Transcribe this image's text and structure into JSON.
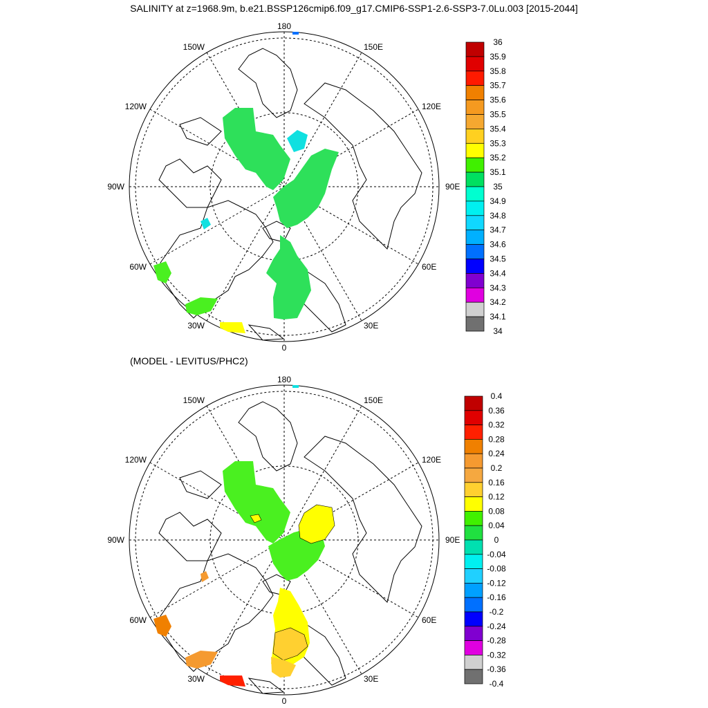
{
  "title": "SALINITY at z=1968.9m, b.e21.BSSP126cmip6.f09_g17.CMIP6-SSP1-2.6-SSP3-7.0Lu.003 [2015-2044]",
  "subtitle": "(MODEL - LEVITUS/PHC2)",
  "lon_labels": {
    "top": "180",
    "bottom": "0",
    "left": "90W",
    "right": "90E",
    "ul1": "150W",
    "ul2": "120W",
    "ur1": "150E",
    "ur2": "120E",
    "ll1": "60W",
    "ll2": "30W",
    "lr1": "60E",
    "lr2": "30E"
  },
  "colorbar_top": {
    "labels": [
      "36",
      "35.9",
      "35.8",
      "35.7",
      "35.6",
      "35.5",
      "35.4",
      "35.3",
      "35.2",
      "35.1",
      "35",
      "34.9",
      "34.8",
      "34.7",
      "34.6",
      "34.5",
      "34.4",
      "34.3",
      "34.2",
      "34.1",
      "34"
    ],
    "colors": [
      "#c00000",
      "#e00000",
      "#ff1a00",
      "#f08000",
      "#f59a20",
      "#f5a830",
      "#ffd020",
      "#ffff00",
      "#40f000",
      "#00e060",
      "#00ffd0",
      "#00f0f0",
      "#10d8ff",
      "#00b0ff",
      "#0070ff",
      "#0000ff",
      "#8000d0",
      "#e000e0",
      "#d0d0d0",
      "#707070"
    ]
  },
  "colorbar_bottom": {
    "labels": [
      "0.4",
      "0.36",
      "0.32",
      "0.28",
      "0.24",
      "0.2",
      "0.16",
      "0.12",
      "0.08",
      "0.04",
      "0",
      "-0.04",
      "-0.08",
      "-0.12",
      "-0.16",
      "-0.2",
      "-0.24",
      "-0.28",
      "-0.32",
      "-0.36",
      "-0.4"
    ],
    "colors": [
      "#c00000",
      "#e00000",
      "#ff2000",
      "#f08000",
      "#f59a30",
      "#f5a840",
      "#ffd030",
      "#ffff00",
      "#40f000",
      "#20e040",
      "#00e0b0",
      "#00f0f0",
      "#20d0ff",
      "#00a0ff",
      "#0070ff",
      "#0000ff",
      "#8000d0",
      "#e000e0",
      "#d0d0d0",
      "#707070"
    ]
  },
  "fill_colors": {
    "green": "#2ee05a",
    "lightgreen": "#4af020",
    "cyan": "#10e0e0",
    "yellow": "#ffff00",
    "gold": "#ffd030",
    "orange": "#f59a30",
    "deeporange": "#f08000",
    "red": "#ff2000",
    "blue": "#0070ff"
  }
}
